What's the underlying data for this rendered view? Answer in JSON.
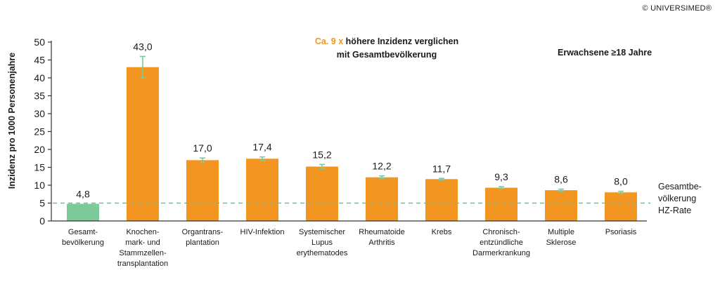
{
  "copyright": "© UNIVERSIMED®",
  "annotation": {
    "highlight": "Ca. 9 x",
    "line1": "höhere Inzidenz verglichen",
    "line2": "mit Gesamtbevölkerung"
  },
  "subtitle": "Erwachsene ≥18 Jahre",
  "reference_label": [
    "Gesamtbe-",
    "völkerung",
    "HZ-Rate"
  ],
  "chart_data": {
    "type": "bar",
    "ylabel": "Inzidenz pro 1000 Personenjahre",
    "xlabel": "",
    "ylim": [
      0,
      50
    ],
    "yticks": [
      0,
      5,
      10,
      15,
      20,
      25,
      30,
      35,
      40,
      45,
      50
    ],
    "grid": false,
    "categories": [
      [
        "Gesamt-",
        "bevölkerung"
      ],
      [
        "Knochen-",
        "mark- und",
        "Stammzellen-",
        "transplantation"
      ],
      [
        "Organtrans-",
        "plantation"
      ],
      [
        "HIV-Infektion"
      ],
      [
        "Systemischer",
        "Lupus",
        "erythematodes"
      ],
      [
        "Rheumatoide",
        "Arthritis"
      ],
      [
        "Krebs"
      ],
      [
        "Chronisch-",
        "entzündliche",
        "Darmerkrankung"
      ],
      [
        "Multiple",
        "Sklerose"
      ],
      [
        "Psoriasis"
      ]
    ],
    "values": [
      4.8,
      43.0,
      17.0,
      17.4,
      15.2,
      12.2,
      11.7,
      9.3,
      8.6,
      8.0
    ],
    "value_labels": [
      "4,8",
      "43,0",
      "17,0",
      "17,4",
      "15,2",
      "12,2",
      "11,7",
      "9,3",
      "8,6",
      "8,0"
    ],
    "error_bars": [
      null,
      [
        40.0,
        46.0
      ],
      [
        16.4,
        17.6
      ],
      [
        16.9,
        17.9
      ],
      [
        14.6,
        15.8
      ],
      [
        11.8,
        12.6
      ],
      [
        11.5,
        11.9
      ],
      [
        9.0,
        9.6
      ],
      [
        8.3,
        8.9
      ],
      [
        7.7,
        8.3
      ]
    ],
    "reference_line": 5,
    "colors": {
      "baseline_bar": "#7cc99a",
      "bar": "#f39521",
      "error": "#7cc99a",
      "reference": "#6cc38d",
      "axis": "#333333"
    }
  }
}
